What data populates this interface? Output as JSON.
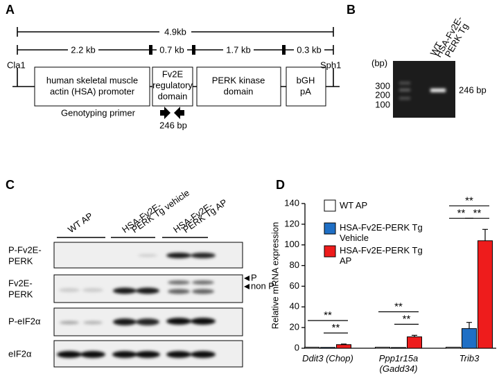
{
  "panel_labels": [
    "A",
    "B",
    "C",
    "D"
  ],
  "construct": {
    "total": "4.9kb",
    "segments": [
      "2.2 kb",
      "0.7 kb",
      "1.7 kb",
      "0.3 kb"
    ],
    "sites": [
      "Cla1",
      "Sph1"
    ],
    "elements": [
      [
        "human skeletal muscle",
        "actin (HSA) promoter"
      ],
      [
        "Fv2E",
        "regulatory",
        "domain"
      ],
      [
        "PERK kinase",
        "domain"
      ],
      [
        "bGH",
        "pA"
      ]
    ],
    "primer": "Genotyping primer",
    "product": "246 bp"
  },
  "gel": {
    "lanes": [
      [
        "WT"
      ],
      [
        "HSA-Fv2E-",
        "PERK Tg"
      ]
    ],
    "unit": "(bp)",
    "markers": [
      "300",
      "200",
      "100"
    ],
    "band": "246 bp"
  },
  "blot": {
    "groups": [
      [
        "WT AP"
      ],
      [
        "HSA-Fv2E-",
        "PERK Tg vehicle"
      ],
      [
        "HSA-Fv2E-",
        "PERK Tg AP"
      ]
    ],
    "rows": [
      [
        "P-Fv2E-",
        "PERK"
      ],
      [
        "Fv2E-",
        "PERK"
      ],
      [
        "P-eIF2α"
      ],
      [
        "eIF2α"
      ]
    ],
    "bands": [
      "P",
      "non P"
    ]
  },
  "chart_data": {
    "type": "bar",
    "y_label": "Relative mRNA expression",
    "categories": [
      "Ddit3 (Chop)",
      "Ppp1r15a (Gadd34)",
      "Trib3"
    ],
    "series": [
      {
        "name": "WT AP",
        "color": "#ffffff",
        "values": [
          1,
          1,
          1
        ],
        "errors": [
          null,
          null,
          null
        ]
      },
      {
        "name": "HSA-Fv2E-PERK Tg Vehicle",
        "color": "#1f6fc5",
        "values": [
          0.8,
          0.7,
          19
        ],
        "errors": [
          null,
          null,
          6
        ]
      },
      {
        "name": "HSA-Fv2E-PERK Tg AP",
        "color": "#ee1c1c",
        "values": [
          3.5,
          11,
          104
        ],
        "errors": [
          0.5,
          1.5,
          11
        ]
      }
    ],
    "significance": [
      {
        "category": 0,
        "pair": [
          0,
          2
        ],
        "label": "**"
      },
      {
        "category": 0,
        "pair": [
          1,
          2
        ],
        "label": "**"
      },
      {
        "category": 1,
        "pair": [
          0,
          2
        ],
        "label": "**"
      },
      {
        "category": 1,
        "pair": [
          1,
          2
        ],
        "label": "**"
      },
      {
        "category": 2,
        "pair": [
          0,
          2
        ],
        "label": "**"
      },
      {
        "category": 2,
        "pair": [
          0,
          1
        ],
        "label": "**"
      },
      {
        "category": 2,
        "pair": [
          1,
          2
        ],
        "label": "**"
      }
    ],
    "ylim": [
      0,
      140
    ],
    "yticks": [
      0,
      20,
      40,
      60,
      80,
      100,
      120,
      140
    ]
  }
}
